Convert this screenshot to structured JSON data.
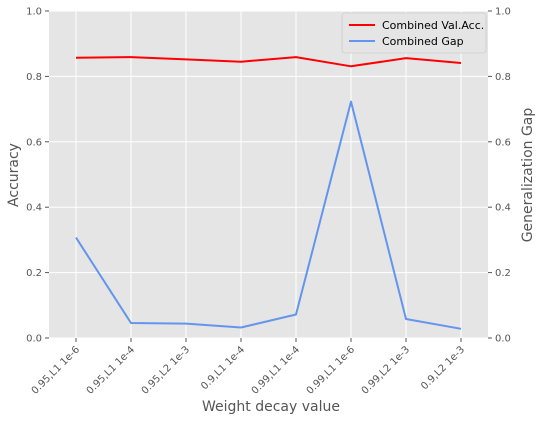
{
  "chart_data": {
    "type": "line",
    "categories": [
      "0.95,L1 1e-6",
      "0.95,L1 1e-4",
      "0.95,L2 1e-3",
      "0.9,L1 1e-4",
      "0.99,L1 1e-4",
      "0.99,L1 1e-6",
      "0.99,L2 1e-3",
      "0.9,L2 1e-3"
    ],
    "series": [
      {
        "name": "Combined Val.Acc.",
        "axis": "left",
        "color": "#ff0000",
        "values": [
          0.857,
          0.859,
          0.852,
          0.845,
          0.859,
          0.831,
          0.856,
          0.841
        ]
      },
      {
        "name": "Combined Gap",
        "axis": "right",
        "color": "#6495ed",
        "values": [
          0.307,
          0.046,
          0.044,
          0.032,
          0.072,
          0.723,
          0.058,
          0.028
        ]
      }
    ],
    "xlabel": "Weight decay value",
    "ylabel": "Accuracy",
    "ylabel_right": "Generalization Gap",
    "ylim": [
      0,
      1
    ],
    "ylim_right": [
      0,
      1
    ],
    "yticks": [
      "0.0",
      "0.2",
      "0.4",
      "0.6",
      "0.8",
      "1.0"
    ],
    "grid": true,
    "legend_position": "top-right"
  },
  "colors": {
    "plot_background": "#e5e5e5",
    "grid": "#ffffff"
  }
}
